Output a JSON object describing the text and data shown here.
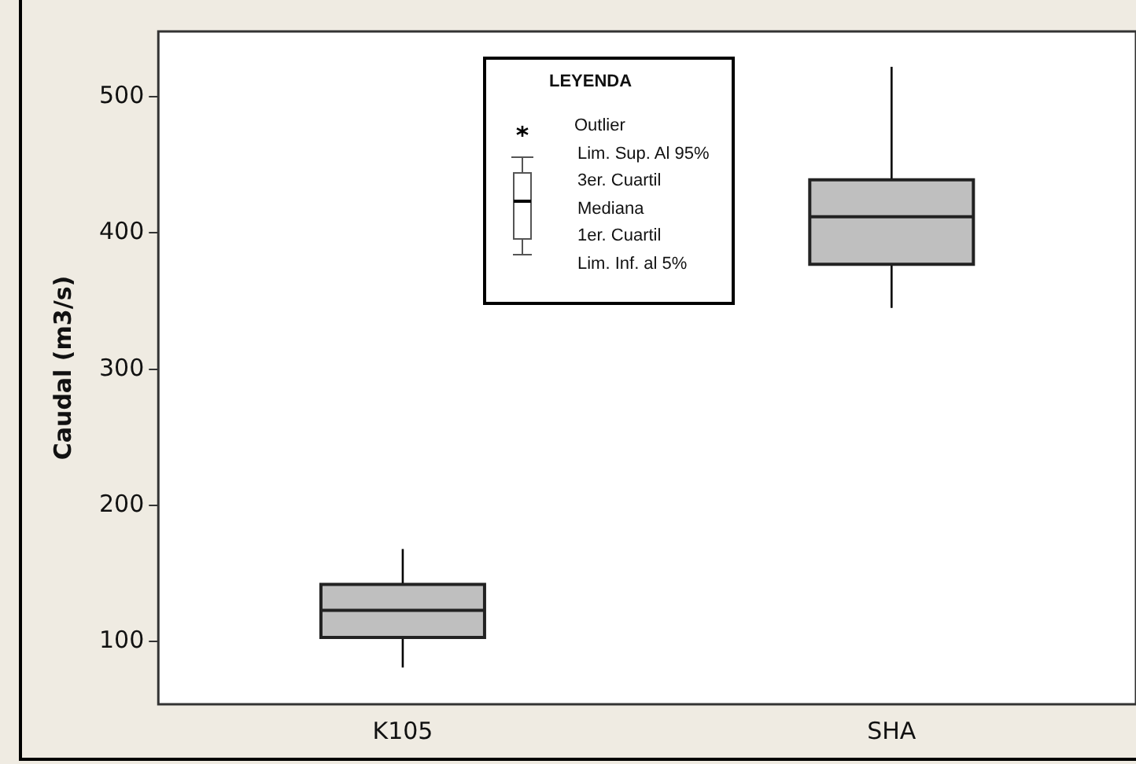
{
  "chart_data": {
    "type": "box",
    "ylabel": "Caudal (m3/s)",
    "legend_title": "LEYENDA",
    "annotations": [
      "Outlier",
      "Lim. Sup. Al 95%",
      "3er. Cuartil",
      "Mediana",
      "1er. Cuartil",
      "Lim. Inf. al 5%"
    ],
    "categories": [
      "K105",
      "SHA"
    ],
    "color": "#bfbfbf",
    "boxes": [
      {
        "low": 81,
        "q1": 103,
        "median": 123,
        "q3": 142,
        "high": 168
      },
      {
        "low": 345,
        "q1": 377,
        "median": 412,
        "q3": 439,
        "high": 522
      }
    ],
    "ylim": [
      54,
      548
    ],
    "yticks": [
      100,
      200,
      300,
      400,
      500
    ],
    "grid": false
  }
}
